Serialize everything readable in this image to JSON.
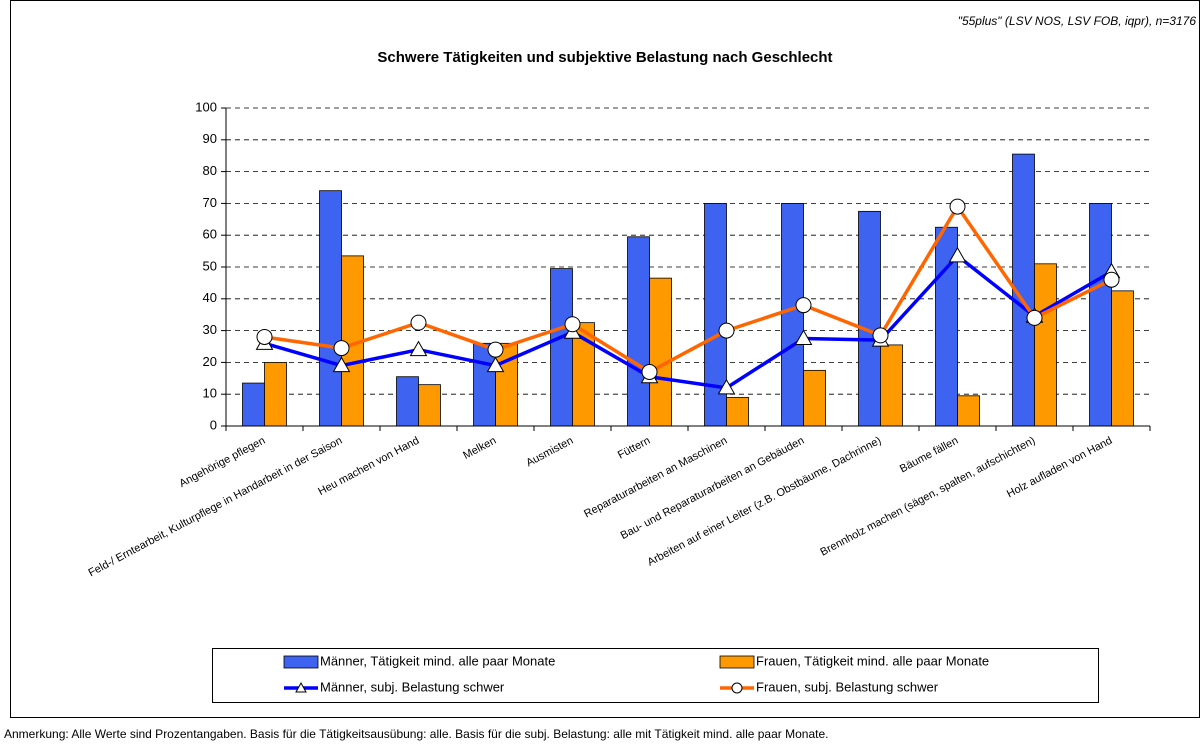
{
  "chart_data": {
    "type": "bar",
    "source": "\"55plus\" (LSV NOS, LSV FOB, iqpr), n=3176",
    "title": "Schwere Tätigkeiten und subjektive Belastung nach Geschlecht",
    "note": "Anmerkung: Alle Werte sind Prozentangaben. Basis für die Tätigkeitsausübung: alle. Basis für die subj. Belastung: alle mit Tätigkeit mind. alle paar Monate.",
    "categories": [
      "Angehörige pflegen",
      "Feld-/ Erntearbeit, Kulturpflege in Handarbeit in der Saison",
      "Heu machen von Hand",
      "Melken",
      "Ausmisten",
      "Füttern",
      "Reparaturarbeiten an Maschinen",
      "Bau- und Reparaturarbeiten an Gebäuden",
      "Arbeiten auf einer Leiter (z.B. Obstbäume, Dachrinne)",
      "Bäume fällen",
      "Brennholz machen (sägen, spalten, aufschichten)",
      "Holz aufladen von Hand"
    ],
    "series": [
      {
        "name": "Männer, Tätigkeit mind. alle paar Monate",
        "type": "bar",
        "color": "#3d63f0",
        "values": [
          13.5,
          74,
          15.5,
          26,
          49.5,
          59.5,
          70,
          70,
          67.5,
          62.5,
          85.5,
          70
        ]
      },
      {
        "name": "Frauen, Tätigkeit mind. alle paar Monate",
        "type": "bar",
        "color": "#ff9900",
        "values": [
          20,
          53.5,
          13,
          26,
          32.5,
          46.5,
          9,
          17.5,
          25.5,
          9.5,
          51,
          42.5
        ]
      },
      {
        "name": "Männer, subj. Belastung schwer",
        "type": "line",
        "marker": "triangle",
        "color": "#0000ff",
        "values": [
          26,
          19,
          24,
          19,
          29.5,
          15.5,
          12,
          27.5,
          27,
          53.5,
          34.5,
          48.5
        ]
      },
      {
        "name": "Frauen, subj. Belastung schwer",
        "type": "line",
        "marker": "circle",
        "color": "#ff6600",
        "values": [
          28,
          24.5,
          32.5,
          24,
          32,
          17,
          30,
          38,
          28.5,
          69,
          34,
          46
        ]
      }
    ],
    "ylim": [
      0,
      100
    ],
    "yticks": [
      0,
      10,
      20,
      30,
      40,
      50,
      60,
      70,
      80,
      90,
      100
    ],
    "grid": true
  }
}
